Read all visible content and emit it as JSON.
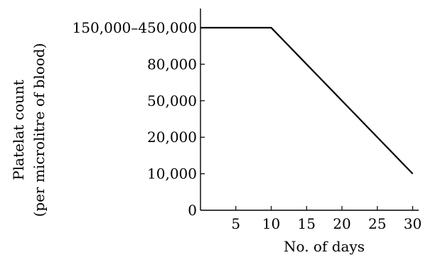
{
  "chart_data": {
    "type": "line",
    "xlabel": "No. of days",
    "ylabel_lines": [
      "Platelat count",
      "(per microlitre of blood)"
    ],
    "x_ticks": [
      5,
      10,
      15,
      20,
      25,
      30
    ],
    "x_tick_labels": [
      "5",
      "10",
      "15",
      "20",
      "25",
      "30"
    ],
    "xlim": [
      0,
      30
    ],
    "y_ticks": [
      0,
      1,
      2,
      3,
      4,
      5
    ],
    "y_tick_labels": [
      "0",
      "10,000",
      "20,000",
      "50,000",
      "80,000",
      "150,000–450,000"
    ],
    "y_scale": "categorical-ordinal",
    "ylim": [
      0,
      5
    ],
    "series": [
      {
        "x": [
          0,
          10,
          30
        ],
        "y": [
          5,
          5,
          1
        ]
      }
    ],
    "grid": false,
    "line_color": "#000000"
  }
}
